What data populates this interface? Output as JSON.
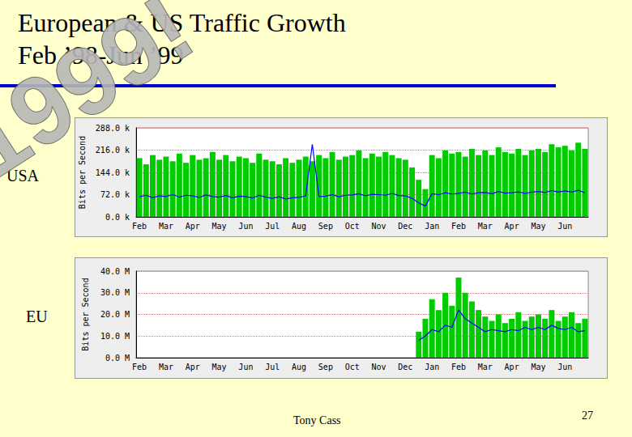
{
  "slide": {
    "title": [
      "European & US Traffic Growth",
      "Feb ’98-Jun ’99"
    ],
    "watermark": "1999!",
    "footer": "Tony Cass",
    "page": "27"
  },
  "chart_data": [
    {
      "type": "bar",
      "title": "USA",
      "y_label": "Bits per Second",
      "categories": [
        "Feb",
        null,
        null,
        null,
        "Mar",
        null,
        null,
        null,
        "Apr",
        null,
        null,
        null,
        "May",
        null,
        null,
        null,
        "Jun",
        null,
        null,
        null,
        "Jul",
        null,
        null,
        null,
        "Aug",
        null,
        null,
        null,
        "Sep",
        null,
        null,
        null,
        "Oct",
        null,
        null,
        null,
        "Nov",
        null,
        null,
        null,
        "Dec",
        null,
        null,
        null,
        "Jan",
        null,
        null,
        null,
        "Feb",
        null,
        null,
        null,
        "Mar",
        null,
        null,
        null,
        "Apr",
        null,
        null,
        null,
        "May",
        null,
        null,
        null,
        "Jun",
        null,
        null,
        null
      ],
      "ylim": [
        0,
        288000
      ],
      "yticks": [
        {
          "value": 0,
          "label": "0.0 k"
        },
        {
          "value": 72000,
          "label": "72.0 k"
        },
        {
          "value": 144000,
          "label": "144.0 k"
        },
        {
          "value": 216000,
          "label": "216.0 k"
        },
        {
          "value": 288000,
          "label": "288.0 k"
        }
      ],
      "grid": true,
      "series": [
        {
          "type": "bar",
          "color": "#00cc00",
          "values": [
            190000,
            170000,
            200000,
            185000,
            195000,
            180000,
            205000,
            175000,
            200000,
            185000,
            190000,
            210000,
            185000,
            200000,
            180000,
            195000,
            190000,
            175000,
            205000,
            185000,
            180000,
            170000,
            190000,
            175000,
            185000,
            195000,
            180000,
            200000,
            190000,
            210000,
            185000,
            195000,
            200000,
            215000,
            190000,
            205000,
            195000,
            210000,
            200000,
            190000,
            185000,
            160000,
            120000,
            90000,
            200000,
            190000,
            215000,
            205000,
            210000,
            195000,
            220000,
            200000,
            215000,
            200000,
            225000,
            210000,
            205000,
            220000,
            200000,
            215000,
            220000,
            210000,
            235000,
            225000,
            230000,
            215000,
            240000,
            220000
          ]
        },
        {
          "type": "line",
          "color": "#0000ff",
          "values": [
            65000,
            70000,
            62000,
            68000,
            66000,
            72000,
            64000,
            70000,
            68000,
            63000,
            71000,
            66000,
            64000,
            69000,
            62000,
            67000,
            66000,
            61000,
            70000,
            64000,
            60000,
            65000,
            58000,
            62000,
            63000,
            68000,
            235000,
            66000,
            67000,
            72000,
            65000,
            70000,
            71000,
            75000,
            68000,
            73000,
            72000,
            70000,
            76000,
            69000,
            68000,
            60000,
            45000,
            35000,
            75000,
            72000,
            78000,
            74000,
            76000,
            80000,
            74000,
            78000,
            79000,
            75000,
            82000,
            77000,
            78000,
            81000,
            76000,
            80000,
            82000,
            79000,
            85000,
            80000,
            84000,
            80000,
            86000,
            78000
          ]
        }
      ]
    },
    {
      "type": "bar",
      "title": "EU",
      "y_label": "Bits per Second",
      "categories": [
        "Feb",
        null,
        null,
        null,
        "Mar",
        null,
        null,
        null,
        "Apr",
        null,
        null,
        null,
        "May",
        null,
        null,
        null,
        "Jun",
        null,
        null,
        null,
        "Jul",
        null,
        null,
        null,
        "Aug",
        null,
        null,
        null,
        "Sep",
        null,
        null,
        null,
        "Oct",
        null,
        null,
        null,
        "Nov",
        null,
        null,
        null,
        "Dec",
        null,
        null,
        null,
        "Jan",
        null,
        null,
        null,
        "Feb",
        null,
        null,
        null,
        "Mar",
        null,
        null,
        null,
        "Apr",
        null,
        null,
        null,
        "May",
        null,
        null,
        null,
        "Jun",
        null,
        null,
        null
      ],
      "ylim": [
        0,
        40000000
      ],
      "yticks": [
        {
          "value": 0,
          "label": "0.0 M"
        },
        {
          "value": 10000000,
          "label": "10.0 M"
        },
        {
          "value": 20000000,
          "label": "20.0 M"
        },
        {
          "value": 30000000,
          "label": "30.0 M"
        },
        {
          "value": 40000000,
          "label": "40.0 M"
        }
      ],
      "grid": true,
      "series": [
        {
          "type": "bar",
          "color": "#00cc00",
          "values": [
            null,
            null,
            null,
            null,
            null,
            null,
            null,
            null,
            null,
            null,
            null,
            null,
            null,
            null,
            null,
            null,
            null,
            null,
            null,
            null,
            null,
            null,
            null,
            null,
            null,
            null,
            null,
            null,
            null,
            null,
            null,
            null,
            null,
            null,
            null,
            null,
            null,
            null,
            null,
            null,
            null,
            null,
            12000000,
            18000000,
            27000000,
            22000000,
            30000000,
            24000000,
            37000000,
            30000000,
            26000000,
            22000000,
            19000000,
            17000000,
            20000000,
            16000000,
            18000000,
            21000000,
            17000000,
            19000000,
            20000000,
            18000000,
            22000000,
            17000000,
            19000000,
            21000000,
            16000000,
            18000000
          ]
        },
        {
          "type": "line",
          "color": "#0000ff",
          "values": [
            null,
            null,
            null,
            null,
            null,
            null,
            null,
            null,
            null,
            null,
            null,
            null,
            null,
            null,
            null,
            null,
            null,
            null,
            null,
            null,
            null,
            null,
            null,
            null,
            null,
            null,
            null,
            null,
            null,
            null,
            null,
            null,
            null,
            null,
            null,
            null,
            null,
            null,
            null,
            null,
            null,
            null,
            8000000,
            10000000,
            13000000,
            12000000,
            15000000,
            14000000,
            22000000,
            18000000,
            16000000,
            14000000,
            12000000,
            13000000,
            12500000,
            12000000,
            13000000,
            12500000,
            14000000,
            13000000,
            14000000,
            13000000,
            15000000,
            13500000,
            13000000,
            14000000,
            12000000,
            12500000
          ]
        }
      ]
    }
  ]
}
